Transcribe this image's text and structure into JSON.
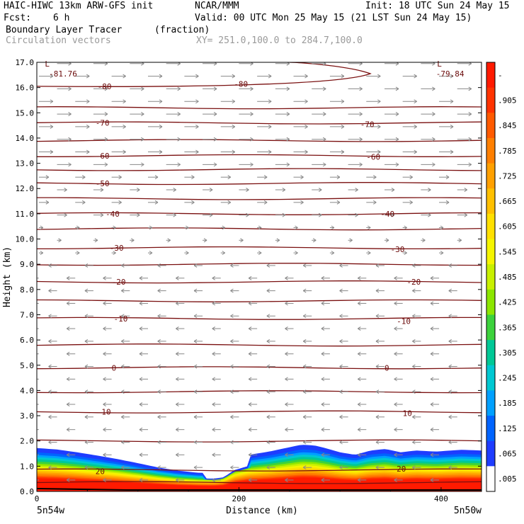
{
  "header": {
    "title_left": "HAIC-HIWC 13km ARW-GFS init",
    "org": "NCAR/MMM",
    "init": "Init: 18 UTC Sun 24 May 15",
    "fcst_label": "Fcst:",
    "fcst_value": "6 h",
    "valid": "Valid: 00 UTC Mon 25 May 15 (21 LST Sun 24 May 15)",
    "field_name": "Boundary Layer Tracer",
    "field_units": "(fraction)",
    "vector_label": "Circulation vectors",
    "xy_range": "XY= 251.0,100.0 to 284.7,100.0"
  },
  "chart_data": {
    "type": "heatmap",
    "xlabel": "Distance (km)",
    "ylabel": "Height (km)",
    "xlim": [
      0,
      440
    ],
    "ylim": [
      0,
      17
    ],
    "x_ticks": [
      "0",
      "200",
      "400"
    ],
    "y_ticks": [
      "0.0",
      "1.0",
      "2.0",
      "3.0",
      "4.0",
      "5.0",
      "6.0",
      "7.0",
      "8.0",
      "9.0",
      "10.0",
      "11.0",
      "12.0",
      "13.0",
      "14.0",
      "15.0",
      "16.0",
      "17.0"
    ],
    "x_end_labels": [
      "5n54w",
      "5n50w"
    ],
    "colorbar": {
      "labels": [
        "-",
        ".905",
        ".845",
        ".785",
        ".725",
        ".665",
        ".605",
        ".545",
        ".485",
        ".425",
        ".365",
        ".305",
        ".245",
        ".185",
        ".125",
        ".065",
        ".005"
      ],
      "colors": [
        "#ff1a00",
        "#ff3300",
        "#ff5a00",
        "#ff7f00",
        "#ffa000",
        "#ffc000",
        "#ffe000",
        "#f5f500",
        "#c8f000",
        "#8ce600",
        "#3cd23c",
        "#00c896",
        "#00c8d2",
        "#00a0ff",
        "#0064ff",
        "#1e3cff",
        "#ffffff"
      ]
    },
    "contour_labels": [
      {
        "label": "-81.76",
        "x": 12,
        "y": 16.55
      },
      {
        "label": "-79.84",
        "x": 395,
        "y": 16.55
      },
      {
        "label": "L",
        "x": 8,
        "y": 16.95
      },
      {
        "label": "L",
        "x": 396,
        "y": 16.95
      },
      {
        "label": "-80",
        "x": 60,
        "y": 16.05
      },
      {
        "label": "-80",
        "x": 195,
        "y": 16.15
      },
      {
        "label": "-70",
        "x": 58,
        "y": 14.6
      },
      {
        "label": "-70",
        "x": 320,
        "y": 14.55
      },
      {
        "label": "-60",
        "x": 58,
        "y": 13.3
      },
      {
        "label": "-60",
        "x": 326,
        "y": 13.25
      },
      {
        "label": "-50",
        "x": 58,
        "y": 12.2
      },
      {
        "label": "-40",
        "x": 68,
        "y": 11.0
      },
      {
        "label": "-40",
        "x": 340,
        "y": 11.0
      },
      {
        "label": "-30",
        "x": 72,
        "y": 9.65
      },
      {
        "label": "-30",
        "x": 350,
        "y": 9.6
      },
      {
        "label": "-20",
        "x": 74,
        "y": 8.3
      },
      {
        "label": "-20",
        "x": 366,
        "y": 8.3
      },
      {
        "label": "-10",
        "x": 76,
        "y": 6.85
      },
      {
        "label": "-10",
        "x": 356,
        "y": 6.75
      },
      {
        "label": "0",
        "x": 74,
        "y": 4.9
      },
      {
        "label": "0",
        "x": 344,
        "y": 4.9
      },
      {
        "label": "10",
        "x": 64,
        "y": 3.15
      },
      {
        "label": "10",
        "x": 362,
        "y": 3.1
      },
      {
        "label": "20",
        "x": 58,
        "y": 0.8
      },
      {
        "label": "20",
        "x": 356,
        "y": 0.9
      }
    ],
    "tracer_top_km": [
      [
        0,
        1.72
      ],
      [
        20,
        1.66
      ],
      [
        40,
        1.55
      ],
      [
        60,
        1.42
      ],
      [
        80,
        1.28
      ],
      [
        100,
        1.12
      ],
      [
        120,
        0.95
      ],
      [
        140,
        0.82
      ],
      [
        160,
        0.74
      ],
      [
        175,
        0.72
      ],
      [
        185,
        0.8
      ],
      [
        195,
        1.2
      ],
      [
        210,
        1.45
      ],
      [
        230,
        1.58
      ],
      [
        250,
        1.75
      ],
      [
        262,
        1.85
      ],
      [
        275,
        1.82
      ],
      [
        285,
        1.72
      ],
      [
        300,
        1.55
      ],
      [
        315,
        1.45
      ],
      [
        330,
        1.62
      ],
      [
        345,
        1.68
      ],
      [
        360,
        1.55
      ],
      [
        375,
        1.62
      ],
      [
        395,
        1.58
      ],
      [
        420,
        1.65
      ],
      [
        440,
        1.62
      ]
    ]
  }
}
